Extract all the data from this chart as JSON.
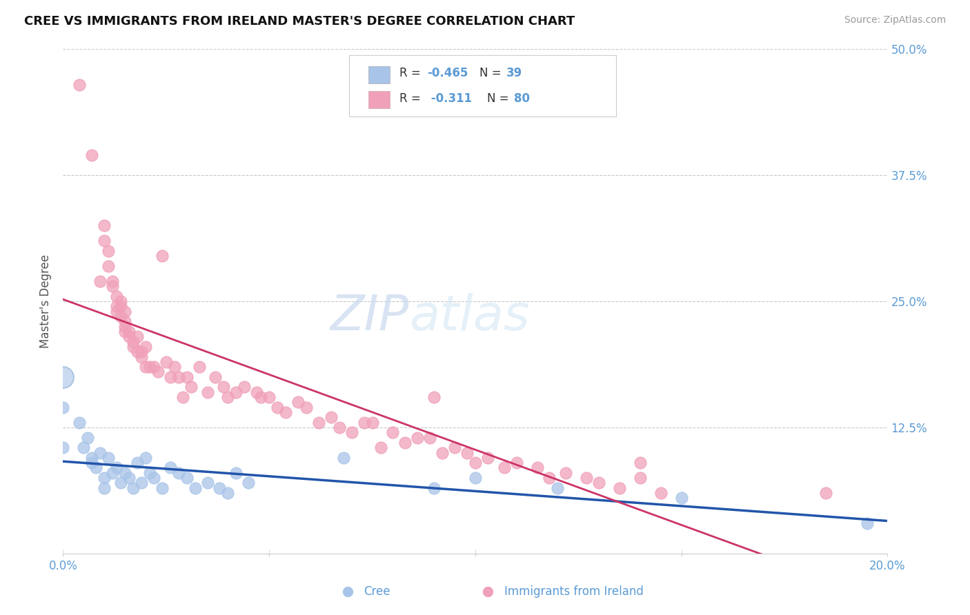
{
  "title": "CREE VS IMMIGRANTS FROM IRELAND MASTER'S DEGREE CORRELATION CHART",
  "source": "Source: ZipAtlas.com",
  "ylabel": "Master's Degree",
  "cree_color": "#a8c4e8",
  "ireland_color": "#f0a0b8",
  "cree_line_color": "#2255aa",
  "ireland_line_color": "#cc3366",
  "axis_color": "#5b9bd5",
  "grid_color": "#bbbbbb",
  "background": "#ffffff",
  "yticks": [
    0.0,
    0.125,
    0.25,
    0.375,
    0.5
  ],
  "ytick_labels": [
    "",
    "12.5%",
    "25.0%",
    "37.5%",
    "50.0%"
  ],
  "xticks": [
    0.0,
    0.05,
    0.1,
    0.15,
    0.2
  ],
  "xmin": 0.0,
  "xmax": 0.2,
  "ymin": 0.0,
  "ymax": 0.5,
  "cree_points": [
    [
      0.0,
      0.145
    ],
    [
      0.0,
      0.105
    ],
    [
      0.004,
      0.13
    ],
    [
      0.005,
      0.105
    ],
    [
      0.006,
      0.115
    ],
    [
      0.007,
      0.095
    ],
    [
      0.007,
      0.09
    ],
    [
      0.008,
      0.085
    ],
    [
      0.009,
      0.1
    ],
    [
      0.01,
      0.075
    ],
    [
      0.01,
      0.065
    ],
    [
      0.011,
      0.095
    ],
    [
      0.012,
      0.08
    ],
    [
      0.013,
      0.085
    ],
    [
      0.014,
      0.07
    ],
    [
      0.015,
      0.08
    ],
    [
      0.016,
      0.075
    ],
    [
      0.017,
      0.065
    ],
    [
      0.018,
      0.09
    ],
    [
      0.019,
      0.07
    ],
    [
      0.02,
      0.095
    ],
    [
      0.021,
      0.08
    ],
    [
      0.022,
      0.075
    ],
    [
      0.024,
      0.065
    ],
    [
      0.026,
      0.085
    ],
    [
      0.028,
      0.08
    ],
    [
      0.03,
      0.075
    ],
    [
      0.032,
      0.065
    ],
    [
      0.035,
      0.07
    ],
    [
      0.038,
      0.065
    ],
    [
      0.04,
      0.06
    ],
    [
      0.042,
      0.08
    ],
    [
      0.045,
      0.07
    ],
    [
      0.068,
      0.095
    ],
    [
      0.09,
      0.065
    ],
    [
      0.1,
      0.075
    ],
    [
      0.12,
      0.065
    ],
    [
      0.15,
      0.055
    ],
    [
      0.195,
      0.03
    ]
  ],
  "ireland_points": [
    [
      0.004,
      0.465
    ],
    [
      0.007,
      0.395
    ],
    [
      0.009,
      0.27
    ],
    [
      0.01,
      0.325
    ],
    [
      0.01,
      0.31
    ],
    [
      0.011,
      0.3
    ],
    [
      0.011,
      0.285
    ],
    [
      0.012,
      0.27
    ],
    [
      0.012,
      0.265
    ],
    [
      0.013,
      0.255
    ],
    [
      0.013,
      0.245
    ],
    [
      0.013,
      0.24
    ],
    [
      0.014,
      0.25
    ],
    [
      0.014,
      0.245
    ],
    [
      0.014,
      0.235
    ],
    [
      0.015,
      0.24
    ],
    [
      0.015,
      0.23
    ],
    [
      0.015,
      0.225
    ],
    [
      0.015,
      0.22
    ],
    [
      0.016,
      0.22
    ],
    [
      0.016,
      0.215
    ],
    [
      0.017,
      0.21
    ],
    [
      0.017,
      0.205
    ],
    [
      0.018,
      0.2
    ],
    [
      0.018,
      0.215
    ],
    [
      0.019,
      0.195
    ],
    [
      0.019,
      0.2
    ],
    [
      0.02,
      0.205
    ],
    [
      0.02,
      0.185
    ],
    [
      0.021,
      0.185
    ],
    [
      0.022,
      0.185
    ],
    [
      0.023,
      0.18
    ],
    [
      0.024,
      0.295
    ],
    [
      0.025,
      0.19
    ],
    [
      0.026,
      0.175
    ],
    [
      0.027,
      0.185
    ],
    [
      0.028,
      0.175
    ],
    [
      0.029,
      0.155
    ],
    [
      0.03,
      0.175
    ],
    [
      0.031,
      0.165
    ],
    [
      0.033,
      0.185
    ],
    [
      0.035,
      0.16
    ],
    [
      0.037,
      0.175
    ],
    [
      0.039,
      0.165
    ],
    [
      0.04,
      0.155
    ],
    [
      0.042,
      0.16
    ],
    [
      0.044,
      0.165
    ],
    [
      0.047,
      0.16
    ],
    [
      0.048,
      0.155
    ],
    [
      0.05,
      0.155
    ],
    [
      0.052,
      0.145
    ],
    [
      0.054,
      0.14
    ],
    [
      0.057,
      0.15
    ],
    [
      0.059,
      0.145
    ],
    [
      0.062,
      0.13
    ],
    [
      0.065,
      0.135
    ],
    [
      0.067,
      0.125
    ],
    [
      0.07,
      0.12
    ],
    [
      0.073,
      0.13
    ],
    [
      0.075,
      0.13
    ],
    [
      0.077,
      0.105
    ],
    [
      0.08,
      0.12
    ],
    [
      0.083,
      0.11
    ],
    [
      0.086,
      0.115
    ],
    [
      0.089,
      0.115
    ],
    [
      0.092,
      0.1
    ],
    [
      0.095,
      0.105
    ],
    [
      0.098,
      0.1
    ],
    [
      0.1,
      0.09
    ],
    [
      0.103,
      0.095
    ],
    [
      0.107,
      0.085
    ],
    [
      0.11,
      0.09
    ],
    [
      0.115,
      0.085
    ],
    [
      0.118,
      0.075
    ],
    [
      0.122,
      0.08
    ],
    [
      0.127,
      0.075
    ],
    [
      0.13,
      0.07
    ],
    [
      0.135,
      0.065
    ],
    [
      0.14,
      0.075
    ],
    [
      0.145,
      0.06
    ],
    [
      0.09,
      0.155
    ],
    [
      0.14,
      0.09
    ],
    [
      0.185,
      0.06
    ]
  ]
}
